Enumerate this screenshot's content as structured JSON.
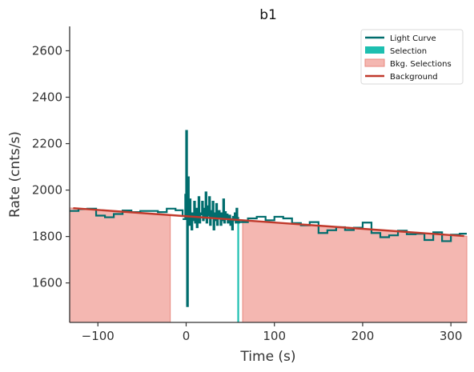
{
  "chart_data": {
    "type": "line",
    "title": "b1",
    "xlabel": "Time (s)",
    "ylabel": "Rate (cnts/s)",
    "xlim": [
      -132,
      318
    ],
    "ylim": [
      1430,
      2705
    ],
    "xticks": [
      -100,
      0,
      100,
      200,
      300
    ],
    "xtick_labels": [
      "−100",
      "0",
      "100",
      "200",
      "300"
    ],
    "yticks": [
      1600,
      1800,
      2000,
      2200,
      2400,
      2600
    ],
    "ytick_labels": [
      "1600",
      "1800",
      "2000",
      "2200",
      "2400",
      "2600"
    ],
    "grid": false,
    "legend_position": "top-right",
    "colors": {
      "light_curve": "#006d6d",
      "selection": "#1dbfb0",
      "bkg_selection_fill": "#f4b7b1",
      "bkg_selection_edge": "#e8897f",
      "background": "#c0392b"
    },
    "legend": [
      {
        "label": "Light Curve",
        "kind": "line",
        "series": "light_curve"
      },
      {
        "label": "Selection",
        "kind": "patch",
        "series": "selection"
      },
      {
        "label": "Bkg. Selections",
        "kind": "patch",
        "series": "bkg_selection"
      },
      {
        "label": "Background",
        "kind": "line",
        "series": "background"
      }
    ],
    "bkg_selections": [
      {
        "start": -132,
        "end": -18
      },
      {
        "start": 64,
        "end": 318
      }
    ],
    "selection": {
      "start": 58,
      "end": 60
    },
    "background_line": {
      "x": [
        -128,
        315
      ],
      "y": [
        1922,
        1802
      ]
    },
    "light_curve_coarse": {
      "x": [
        -132,
        -122,
        -112,
        -102,
        -92,
        -82,
        -72,
        -62,
        -52,
        -42,
        -32,
        -22,
        -12,
        -4,
        60,
        70,
        80,
        90,
        100,
        110,
        120,
        130,
        140,
        150,
        160,
        170,
        180,
        190,
        200,
        210,
        220,
        230,
        240,
        250,
        260,
        270,
        280,
        290,
        300,
        310,
        318
      ],
      "y": [
        1910,
        1918,
        1920,
        1890,
        1883,
        1897,
        1912,
        1905,
        1910,
        1910,
        1905,
        1920,
        1913,
        1888,
        1862,
        1878,
        1885,
        1870,
        1885,
        1878,
        1858,
        1848,
        1862,
        1815,
        1827,
        1840,
        1828,
        1838,
        1860,
        1815,
        1797,
        1805,
        1825,
        1810,
        1812,
        1785,
        1818,
        1780,
        1808,
        1812,
        1812
      ]
    },
    "light_curve_fine": {
      "x": [
        -4,
        -1,
        0,
        1,
        2,
        3,
        4,
        5,
        6,
        7,
        8,
        9,
        10,
        11,
        12,
        13,
        14,
        15,
        16,
        17,
        18,
        19,
        20,
        21,
        22,
        23,
        24,
        25,
        26,
        27,
        28,
        29,
        30,
        31,
        32,
        33,
        34,
        35,
        36,
        37,
        38,
        39,
        40,
        41,
        42,
        43,
        44,
        45,
        46,
        47,
        48,
        49,
        50,
        51,
        52,
        53,
        54,
        55,
        56,
        57,
        58,
        59,
        60
      ],
      "y": [
        1875,
        1980,
        2255,
        1500,
        2055,
        1850,
        1960,
        1850,
        1830,
        1900,
        1870,
        1950,
        1860,
        1920,
        1840,
        1890,
        1970,
        1860,
        1895,
        1900,
        1950,
        1870,
        1920,
        1880,
        1990,
        1860,
        1930,
        1890,
        1970,
        1850,
        1910,
        1880,
        1950,
        1830,
        1900,
        1870,
        1940,
        1850,
        1880,
        1910,
        1880,
        1850,
        1900,
        1870,
        1960,
        1860,
        1905,
        1880,
        1895,
        1860,
        1870,
        1890,
        1850,
        1875,
        1830,
        1885,
        1870,
        1900,
        1860,
        1920,
        1880,
        1860,
        1870
      ]
    }
  }
}
